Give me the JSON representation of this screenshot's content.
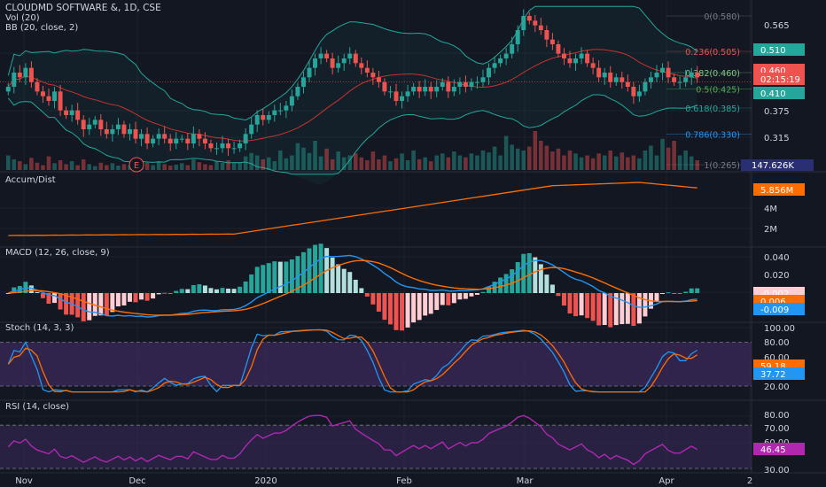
{
  "header": {
    "symbol_title": "CLOUDMD SOFTWARE &, 1D, CSE",
    "vol_label": "Vol (20)",
    "bb_label": "BB (20, close, 2)"
  },
  "panes": {
    "accum_label": "Accum/Dist",
    "macd_label": "MACD (12, 26, close, 9)",
    "stoch_label": "Stoch (14, 3, 3)",
    "rsi_label": "RSI (14, close)"
  },
  "colors": {
    "background": "#131722",
    "up": "#26a69a",
    "down": "#ef5350",
    "bb_band": "#1fa89a",
    "bb_basis": "#c8342d",
    "accum": "#ff6d00",
    "macd": "#2196f3",
    "signal": "#ff6d00",
    "stoch_k": "#2196f3",
    "stoch_d": "#ff6d00",
    "rsi": "#b027b0",
    "band_fill": "#3b2a5c"
  },
  "chart_data": {
    "type": "candlestick",
    "x_labels": [
      "Nov",
      "Dec",
      "2020",
      "Feb",
      "Mar",
      "Apr",
      "2"
    ],
    "price_axis": {
      "ticks": [
        "0.565",
        "0.375",
        "0.315"
      ],
      "fib_levels": [
        {
          "label": "0(0.580)",
          "value": 0.58,
          "color": "#787b86"
        },
        {
          "label": "0.236(0.505)",
          "value": 0.505,
          "color": "#ef5350"
        },
        {
          "label": "0.382(0.460)",
          "value": 0.46,
          "color": "#81c784"
        },
        {
          "label": "0.5(0.425)",
          "value": 0.425,
          "color": "#4caf50"
        },
        {
          "label": "0.618(0.385)",
          "value": 0.385,
          "color": "#26a69a"
        },
        {
          "label": "0.786(0.330)",
          "value": 0.33,
          "color": "#2196f3"
        },
        {
          "label": "1(0.265)",
          "value": 0.265,
          "color": "#787b86"
        }
      ],
      "badges": [
        {
          "text": "0.510",
          "color": "#26a69a"
        },
        {
          "text": "0.460",
          "color": "#ef5350"
        },
        {
          "text": "02:15:19",
          "color": "#ef5350"
        },
        {
          "text": "0.410",
          "color": "#26a69a"
        },
        {
          "text": "147.626K",
          "color": "#2a2e73"
        }
      ],
      "partial_tick": "0.300"
    },
    "earnings_marker": "E",
    "closes": [
      0.43,
      0.46,
      0.45,
      0.47,
      0.44,
      0.42,
      0.41,
      0.4,
      0.42,
      0.38,
      0.37,
      0.38,
      0.36,
      0.34,
      0.35,
      0.36,
      0.34,
      0.33,
      0.34,
      0.35,
      0.33,
      0.34,
      0.32,
      0.33,
      0.31,
      0.32,
      0.33,
      0.32,
      0.31,
      0.32,
      0.32,
      0.31,
      0.33,
      0.32,
      0.31,
      0.3,
      0.3,
      0.31,
      0.3,
      0.3,
      0.31,
      0.33,
      0.35,
      0.37,
      0.36,
      0.37,
      0.38,
      0.38,
      0.39,
      0.41,
      0.43,
      0.45,
      0.47,
      0.49,
      0.5,
      0.49,
      0.47,
      0.48,
      0.49,
      0.5,
      0.48,
      0.47,
      0.46,
      0.45,
      0.44,
      0.42,
      0.42,
      0.4,
      0.41,
      0.42,
      0.43,
      0.42,
      0.43,
      0.42,
      0.43,
      0.44,
      0.42,
      0.43,
      0.44,
      0.43,
      0.44,
      0.44,
      0.45,
      0.47,
      0.48,
      0.49,
      0.5,
      0.52,
      0.55,
      0.58,
      0.57,
      0.56,
      0.55,
      0.53,
      0.52,
      0.5,
      0.49,
      0.48,
      0.49,
      0.5,
      0.48,
      0.47,
      0.45,
      0.46,
      0.44,
      0.45,
      0.44,
      0.43,
      0.41,
      0.42,
      0.44,
      0.45,
      0.46,
      0.47,
      0.45,
      0.44,
      0.44,
      0.45,
      0.46,
      0.45
    ],
    "volumes": [
      30,
      22,
      18,
      12,
      25,
      15,
      10,
      28,
      14,
      20,
      12,
      18,
      10,
      22,
      12,
      8,
      15,
      10,
      14,
      9,
      12,
      10,
      8,
      12,
      15,
      10,
      18,
      12,
      9,
      11,
      14,
      10,
      22,
      16,
      12,
      10,
      18,
      15,
      20,
      14,
      16,
      28,
      35,
      30,
      22,
      26,
      18,
      40,
      24,
      30,
      55,
      46,
      35,
      60,
      28,
      44,
      22,
      38,
      26,
      30,
      34,
      26,
      20,
      38,
      22,
      30,
      18,
      24,
      34,
      20,
      40,
      22,
      26,
      18,
      30,
      34,
      26,
      38,
      30,
      26,
      34,
      30,
      40,
      36,
      48,
      30,
      70,
      52,
      44,
      40,
      48,
      80,
      60,
      50,
      38,
      44,
      30,
      40,
      34,
      26,
      30,
      24,
      34,
      30,
      40,
      28,
      36,
      26,
      30,
      24,
      40,
      50,
      30,
      64,
      46,
      60,
      30,
      40,
      28,
      20
    ],
    "accum_dist": {
      "ticks": [
        "5.856M",
        "4M",
        "2M"
      ]
    },
    "macd": {
      "ticks": [
        "0.040",
        "0.020",
        "-0.002",
        "0.006",
        "-0.009"
      ]
    },
    "stoch": {
      "ticks": [
        "100.00",
        "80.00",
        "60.00",
        "59.18",
        "37.72",
        "20.00"
      ]
    },
    "rsi": {
      "ticks": [
        "80.00",
        "70.00",
        "60.00",
        "50.00",
        "46.45",
        "30.00"
      ]
    }
  }
}
